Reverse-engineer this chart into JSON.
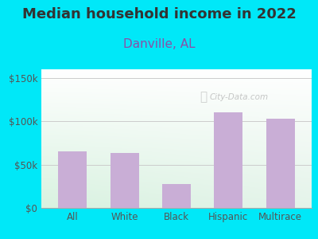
{
  "title": "Median household income in 2022",
  "subtitle": "Danville, AL",
  "categories": [
    "All",
    "White",
    "Black",
    "Hispanic",
    "Multirace"
  ],
  "values": [
    65000,
    63000,
    28000,
    110000,
    103000
  ],
  "bar_color": "#c9aed6",
  "title_fontsize": 13,
  "subtitle_fontsize": 11,
  "title_color": "#333333",
  "subtitle_color": "#8b4fa8",
  "tick_label_color": "#555555",
  "background_outer": "#00e8f8",
  "ylim": [
    0,
    160000
  ],
  "yticks": [
    0,
    50000,
    100000,
    150000
  ],
  "watermark": "City-Data.com"
}
